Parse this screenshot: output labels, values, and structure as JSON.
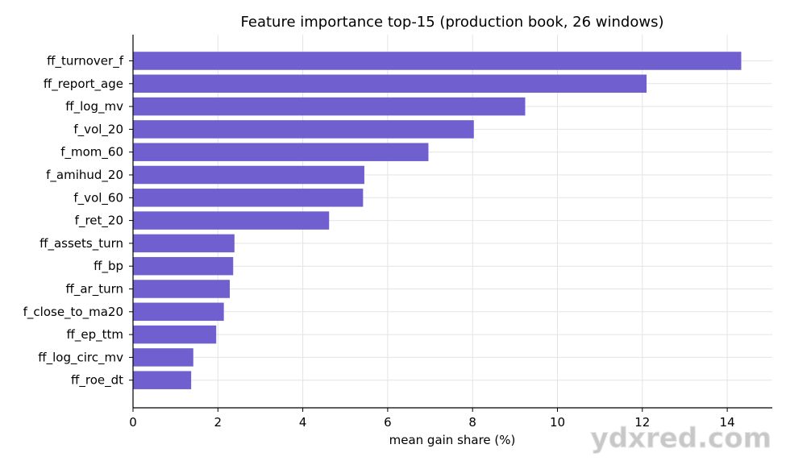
{
  "chart_data": {
    "type": "bar",
    "orientation": "horizontal",
    "title": "Feature importance top-15 (production book, 26 windows)",
    "xlabel": "mean gain share (%)",
    "ylabel": "",
    "xlim": [
      0,
      15
    ],
    "xticks": [
      0,
      2,
      4,
      6,
      8,
      10,
      12,
      14
    ],
    "grid": true,
    "bar_color": "#6a5acd",
    "categories": [
      "ff_turnover_f",
      "ff_report_age",
      "ff_log_mv",
      "f_vol_20",
      "f_mom_60",
      "f_amihud_20",
      "f_vol_60",
      "f_ret_20",
      "ff_assets_turn",
      "ff_bp",
      "ff_ar_turn",
      "f_close_to_ma20",
      "ff_ep_ttm",
      "ff_log_circ_mv",
      "ff_roe_dt"
    ],
    "values": [
      14.33,
      12.1,
      9.24,
      8.03,
      6.96,
      5.45,
      5.42,
      4.62,
      2.39,
      2.36,
      2.28,
      2.14,
      1.96,
      1.42,
      1.37
    ]
  },
  "watermark": "ydxred.com"
}
